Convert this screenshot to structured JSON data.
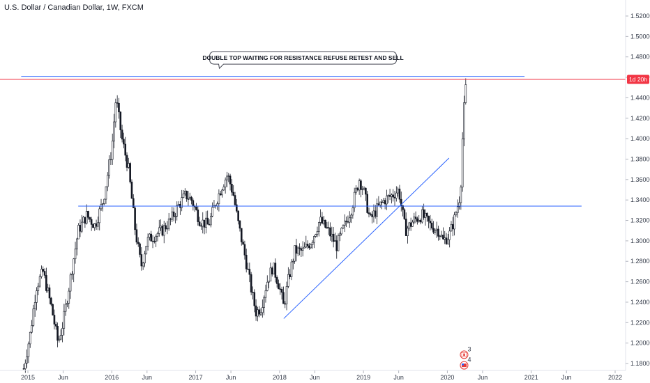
{
  "chart_data": {
    "type": "candlestick",
    "title": "U.S. Dollar / Canadian Dollar, 1W, FXCM",
    "ylim": [
      1.172,
      1.532
    ],
    "xlim": [
      2014.92,
      2022.22
    ],
    "y_ticks": [
      "1.52000",
      "1.50000",
      "1.48000",
      "1.46000",
      "1.44000",
      "1.42000",
      "1.40000",
      "1.38000",
      "1.36000",
      "1.34000",
      "1.32000",
      "1.30000",
      "1.28000",
      "1.26000",
      "1.24000",
      "1.22000",
      "1.20000",
      "1.18000"
    ],
    "x_ticks": [
      {
        "label": "2015",
        "x": 2015.0
      },
      {
        "label": "Jun",
        "x": 2015.42
      },
      {
        "label": "2016",
        "x": 2016.0
      },
      {
        "label": "Jun",
        "x": 2016.42
      },
      {
        "label": "2017",
        "x": 2017.0
      },
      {
        "label": "Jun",
        "x": 2017.42
      },
      {
        "label": "2018",
        "x": 2018.0
      },
      {
        "label": "Jun",
        "x": 2018.42
      },
      {
        "label": "2019",
        "x": 2019.0
      },
      {
        "label": "Jun",
        "x": 2019.42
      },
      {
        "label": "2020",
        "x": 2020.0
      },
      {
        "label": "Jun",
        "x": 2020.42
      },
      {
        "label": "2021",
        "x": 2021.0
      },
      {
        "label": "Jun",
        "x": 2021.42
      },
      {
        "label": "2022",
        "x": 2022.0
      }
    ],
    "price_path": [
      [
        2014.95,
        1.175
      ],
      [
        2015.03,
        1.21
      ],
      [
        2015.1,
        1.255
      ],
      [
        2015.18,
        1.27
      ],
      [
        2015.28,
        1.235
      ],
      [
        2015.36,
        1.2
      ],
      [
        2015.42,
        1.22
      ],
      [
        2015.52,
        1.27
      ],
      [
        2015.6,
        1.31
      ],
      [
        2015.7,
        1.325
      ],
      [
        2015.8,
        1.315
      ],
      [
        2015.9,
        1.34
      ],
      [
        2016.0,
        1.39
      ],
      [
        2016.05,
        1.44
      ],
      [
        2016.12,
        1.4
      ],
      [
        2016.2,
        1.37
      ],
      [
        2016.28,
        1.31
      ],
      [
        2016.35,
        1.275
      ],
      [
        2016.42,
        1.3
      ],
      [
        2016.5,
        1.305
      ],
      [
        2016.6,
        1.31
      ],
      [
        2016.7,
        1.32
      ],
      [
        2016.8,
        1.335
      ],
      [
        2016.88,
        1.345
      ],
      [
        2016.95,
        1.34
      ],
      [
        2017.05,
        1.32
      ],
      [
        2017.15,
        1.315
      ],
      [
        2017.25,
        1.34
      ],
      [
        2017.32,
        1.355
      ],
      [
        2017.38,
        1.365
      ],
      [
        2017.45,
        1.345
      ],
      [
        2017.5,
        1.32
      ],
      [
        2017.6,
        1.28
      ],
      [
        2017.68,
        1.245
      ],
      [
        2017.72,
        1.23
      ],
      [
        2017.78,
        1.235
      ],
      [
        2017.85,
        1.26
      ],
      [
        2017.92,
        1.275
      ],
      [
        2018.0,
        1.255
      ],
      [
        2018.05,
        1.235
      ],
      [
        2018.1,
        1.26
      ],
      [
        2018.18,
        1.29
      ],
      [
        2018.28,
        1.29
      ],
      [
        2018.38,
        1.3
      ],
      [
        2018.48,
        1.32
      ],
      [
        2018.58,
        1.31
      ],
      [
        2018.68,
        1.295
      ],
      [
        2018.75,
        1.31
      ],
      [
        2018.85,
        1.33
      ],
      [
        2018.95,
        1.36
      ],
      [
        2019.0,
        1.35
      ],
      [
        2019.08,
        1.32
      ],
      [
        2019.15,
        1.33
      ],
      [
        2019.25,
        1.34
      ],
      [
        2019.35,
        1.345
      ],
      [
        2019.42,
        1.35
      ],
      [
        2019.5,
        1.31
      ],
      [
        2019.6,
        1.32
      ],
      [
        2019.7,
        1.325
      ],
      [
        2019.8,
        1.315
      ],
      [
        2019.9,
        1.31
      ],
      [
        2019.95,
        1.3
      ],
      [
        2020.02,
        1.305
      ],
      [
        2020.08,
        1.32
      ],
      [
        2020.14,
        1.34
      ],
      [
        2020.16,
        1.355
      ],
      [
        2020.19,
        1.42
      ],
      [
        2020.22,
        1.45
      ]
    ],
    "series": [
      {
        "name": "Double top resistance",
        "type": "hline",
        "y": 1.461,
        "x0": 2014.92,
        "x1": 2020.92,
        "color": "#2962ff"
      },
      {
        "name": "Horizontal support",
        "type": "hline",
        "y": 1.334,
        "x0": 2015.6,
        "x1": 2021.6,
        "color": "#2962ff"
      },
      {
        "name": "Ascending trendline",
        "type": "line",
        "points": [
          [
            2018.05,
            1.224
          ],
          [
            2020.02,
            1.381
          ]
        ],
        "color": "#2962ff"
      },
      {
        "name": "Current price line",
        "type": "hline",
        "y": 1.458,
        "color": "#f23645"
      }
    ],
    "annotations": [
      {
        "text": "DOUBLE TOP WAITING FOR RESISTANCE REFUSE RETEST AND SELL",
        "x": 2018.28,
        "y": 1.479
      },
      {
        "text": "1d 20h",
        "y": 1.458
      },
      {
        "text": "3",
        "x": 2020.2,
        "y": 1.192
      },
      {
        "text": "4",
        "x": 2020.2,
        "y": 1.183
      }
    ],
    "colors": {
      "up": "#26a69a",
      "down": "#ef5350",
      "candle_body": "#131722",
      "line": "#2962ff",
      "price": "#f23645"
    }
  }
}
